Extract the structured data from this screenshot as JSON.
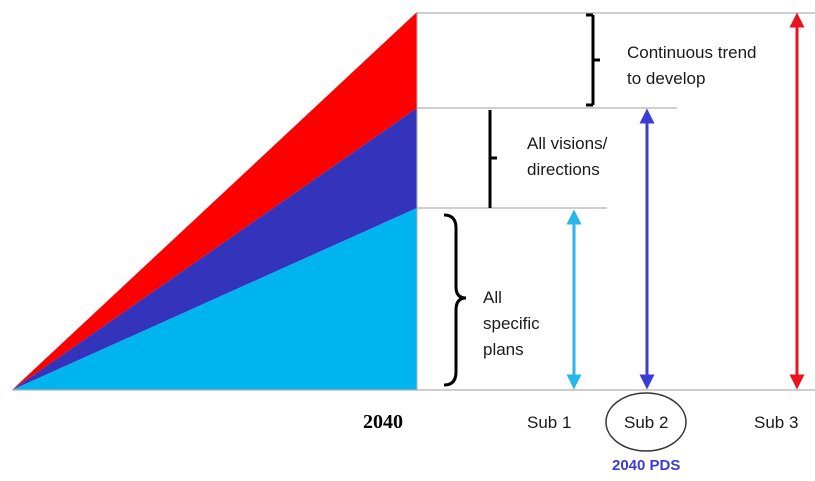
{
  "labels": {
    "trend_line1": "Continuous trend",
    "trend_line2": "to develop",
    "visions_line1": "All visions/",
    "visions_line2": "directions",
    "plans_line1": "All",
    "plans_line2": "specific",
    "plans_line3": "plans",
    "year": "2040",
    "sub1": "Sub 1",
    "sub2": "Sub 2",
    "sub3": "Sub 3",
    "pds": "2040 PDS"
  },
  "colors": {
    "red": "#ff0000",
    "blue": "#3333bb",
    "cyan": "#00b4f0",
    "arrow_cyan": "#29b6e8",
    "arrow_blue": "#3b3bd6",
    "arrow_red": "#e8141e",
    "pds_text": "#3b3bd6",
    "line": "#b0b0b0"
  }
}
